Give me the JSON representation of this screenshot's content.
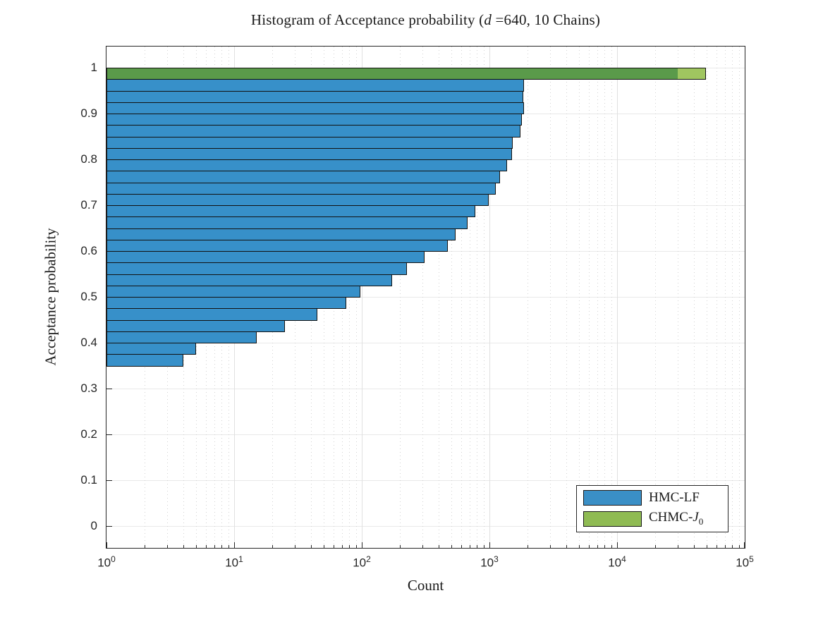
{
  "colors": {
    "axis": "#262626",
    "grid_major": "#e0e0e0",
    "grid_minor": "#d2d2d2",
    "bar_edge": "#121212",
    "background": "#ffffff",
    "hmc_blue": "#3790C9",
    "chmc_green_solo": "#A0C660",
    "chmc_green_over_blue": "#5A9A4A",
    "legend_blue_swatch": "#3A8FC6",
    "legend_green_swatch": "#8FBC55"
  },
  "chart_data": {
    "type": "bar",
    "subtype": "horizontal-histogram",
    "title": "Histogram of Acceptance probability (d =640, 10 Chains)",
    "title_segments": {
      "pre": "Histogram of Acceptance probability (",
      "var": "d",
      "post": " =640, 10 Chains)"
    },
    "xlabel": "Count",
    "ylabel": "Acceptance probability",
    "x_scale": "log10",
    "x_range": [
      1,
      100000
    ],
    "x_tick_exponents": [
      0,
      1,
      2,
      3,
      4,
      5
    ],
    "x_tick_base": "10",
    "y_range": [
      0,
      1
    ],
    "y_ticks": [
      0,
      0.1,
      0.2,
      0.3,
      0.4,
      0.5,
      0.6,
      0.7,
      0.8,
      0.9,
      1
    ],
    "y_tick_labels": [
      "0",
      "0.1",
      "0.2",
      "0.3",
      "0.4",
      "0.5",
      "0.6",
      "0.7",
      "0.8",
      "0.9",
      "1"
    ],
    "grid": {
      "major": true,
      "minor_x_dotted": true,
      "minor_ticks_x": [
        2,
        3,
        4,
        5,
        6,
        7,
        8,
        9
      ]
    },
    "bin_width": 0.025,
    "legend_position": "southeast",
    "series": [
      {
        "name": "HMC-LF",
        "color": "#3790C9",
        "bin_start": 0.35,
        "bins_note": "counts per 0.025-wide acceptance-probability bin, from 0.35 up to 1.0; last bin hidden behind CHMC bar",
        "counts": [
          4,
          5,
          15,
          25,
          45,
          76,
          97,
          173,
          226,
          310,
          470,
          540,
          675,
          775,
          985,
          1115,
          1216,
          1377,
          1497,
          1516,
          1752,
          1789,
          1865,
          1842,
          1865,
          29500
        ]
      },
      {
        "name": "CHMC-J0",
        "name_segments": {
          "pre": "CHMC-",
          "var": "J",
          "sub": "0"
        },
        "color": "#77AC30",
        "bin_start": 0.975,
        "counts": [
          49500
        ],
        "overlap_count": 29500,
        "overlap_color": "#5A9A4A",
        "solo_color": "#A0C660"
      }
    ],
    "legend_entries": [
      {
        "label": "HMC-LF",
        "swatch_color": "#3A8FC6"
      },
      {
        "label": "CHMC-J0",
        "swatch_color": "#8FBB53"
      }
    ]
  }
}
